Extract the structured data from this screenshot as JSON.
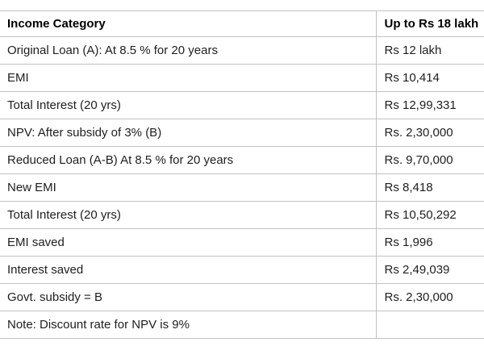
{
  "chart_data": {
    "type": "table",
    "columns": [
      "Income Category",
      "Up to Rs 18 lakh"
    ],
    "rows": [
      {
        "label": "Original Loan (A): At 8.5 % for 20 years",
        "value": "Rs 12 lakh"
      },
      {
        "label": "EMI",
        "value": "Rs 10,414"
      },
      {
        "label": "Total Interest (20 yrs)",
        "value": "Rs 12,99,331"
      },
      {
        "label": "NPV: After subsidy of 3% (B)",
        "value": "Rs. 2,30,000"
      },
      {
        "label": "Reduced Loan (A-B) At 8.5 % for 20 years",
        "value": "Rs. 9,70,000"
      },
      {
        "label": "New EMI",
        "value": "Rs 8,418"
      },
      {
        "label": "Total Interest (20 yrs)",
        "value": "Rs 10,50,292"
      },
      {
        "label": "EMI saved",
        "value": "Rs 1,996"
      },
      {
        "label": "Interest saved",
        "value": "Rs 2,49,039"
      },
      {
        "label": "Govt. subsidy = B",
        "value": "Rs. 2,30,000"
      },
      {
        "label": "Note: Discount rate for NPV is 9%",
        "value": ""
      }
    ]
  },
  "colors": {
    "border": "#c2c2c2",
    "text": "#1e1e1e",
    "header_text": "#000000",
    "background": "#ffffff"
  }
}
